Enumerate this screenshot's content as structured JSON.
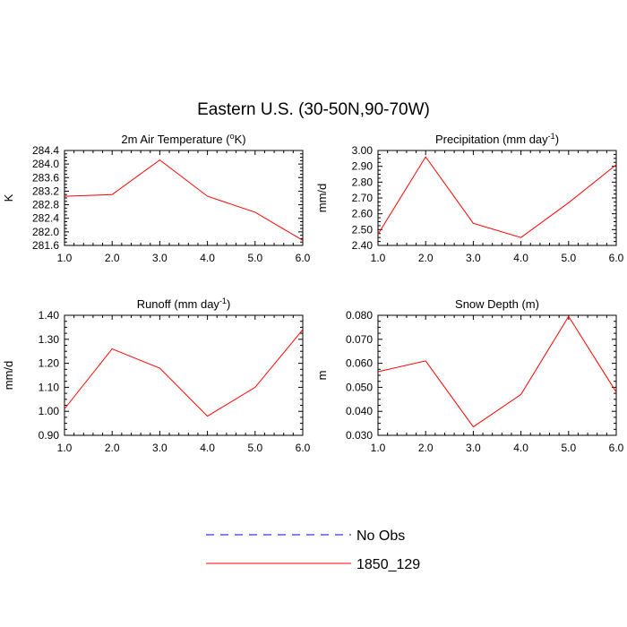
{
  "title": "Eastern U.S. (30-50N,90-70W)",
  "chart_data": [
    {
      "type": "line",
      "title_main": "2m Air Temperature (",
      "title_sup": "o",
      "title_end": "K)",
      "ylabel": "K",
      "x": [
        1,
        2,
        3,
        4,
        5,
        6
      ],
      "xlim": [
        1,
        6
      ],
      "xticks": [
        "1.0",
        "2.0",
        "3.0",
        "4.0",
        "5.0",
        "6.0"
      ],
      "ylim": [
        281.6,
        284.4
      ],
      "yticks": [
        "281.6",
        "282.0",
        "282.4",
        "282.8",
        "283.2",
        "283.6",
        "284.0",
        "284.4"
      ],
      "series": [
        {
          "name": "1850_129",
          "color": "#ff0000",
          "values": [
            283.05,
            283.1,
            284.12,
            283.05,
            282.58,
            281.75
          ]
        }
      ]
    },
    {
      "type": "line",
      "title_main": "Precipitation (mm day",
      "title_sup": "-1",
      "title_end": ")",
      "ylabel": "mm/d",
      "x": [
        1,
        2,
        3,
        4,
        5,
        6
      ],
      "xlim": [
        1,
        6
      ],
      "xticks": [
        "1.0",
        "2.0",
        "3.0",
        "4.0",
        "5.0",
        "6.0"
      ],
      "ylim": [
        2.4,
        3.0
      ],
      "yticks": [
        "2.40",
        "2.50",
        "2.60",
        "2.70",
        "2.80",
        "2.90",
        "3.00"
      ],
      "series": [
        {
          "name": "1850_129",
          "color": "#ff0000",
          "values": [
            2.47,
            2.96,
            2.54,
            2.45,
            2.67,
            2.91
          ]
        }
      ]
    },
    {
      "type": "line",
      "title_main": "Runoff (mm day",
      "title_sup": "-1",
      "title_end": ")",
      "ylabel": "mm/d",
      "x": [
        1,
        2,
        3,
        4,
        5,
        6
      ],
      "xlim": [
        1,
        6
      ],
      "xticks": [
        "1.0",
        "2.0",
        "3.0",
        "4.0",
        "5.0",
        "6.0"
      ],
      "ylim": [
        0.9,
        1.4
      ],
      "yticks": [
        "0.90",
        "1.00",
        "1.10",
        "1.20",
        "1.30",
        "1.40"
      ],
      "series": [
        {
          "name": "1850_129",
          "color": "#ff0000",
          "values": [
            1.01,
            1.26,
            1.18,
            0.98,
            1.1,
            1.34
          ]
        }
      ]
    },
    {
      "type": "line",
      "title_main": "Snow Depth (m)",
      "title_sup": "",
      "title_end": "",
      "ylabel": "m",
      "x": [
        1,
        2,
        3,
        4,
        5,
        6
      ],
      "xlim": [
        1,
        6
      ],
      "xticks": [
        "1.0",
        "2.0",
        "3.0",
        "4.0",
        "5.0",
        "6.0"
      ],
      "ylim": [
        0.03,
        0.08
      ],
      "yticks": [
        "0.030",
        "0.040",
        "0.050",
        "0.060",
        "0.070",
        "0.080"
      ],
      "series": [
        {
          "name": "1850_129",
          "color": "#ff0000",
          "values": [
            0.0565,
            0.061,
            0.0335,
            0.047,
            0.0795,
            0.048
          ]
        }
      ]
    }
  ],
  "legend": [
    {
      "label": "No Obs",
      "color": "#0000ff",
      "style": "dashed"
    },
    {
      "label": "1850_129",
      "color": "#ff0000",
      "style": "solid"
    }
  ]
}
